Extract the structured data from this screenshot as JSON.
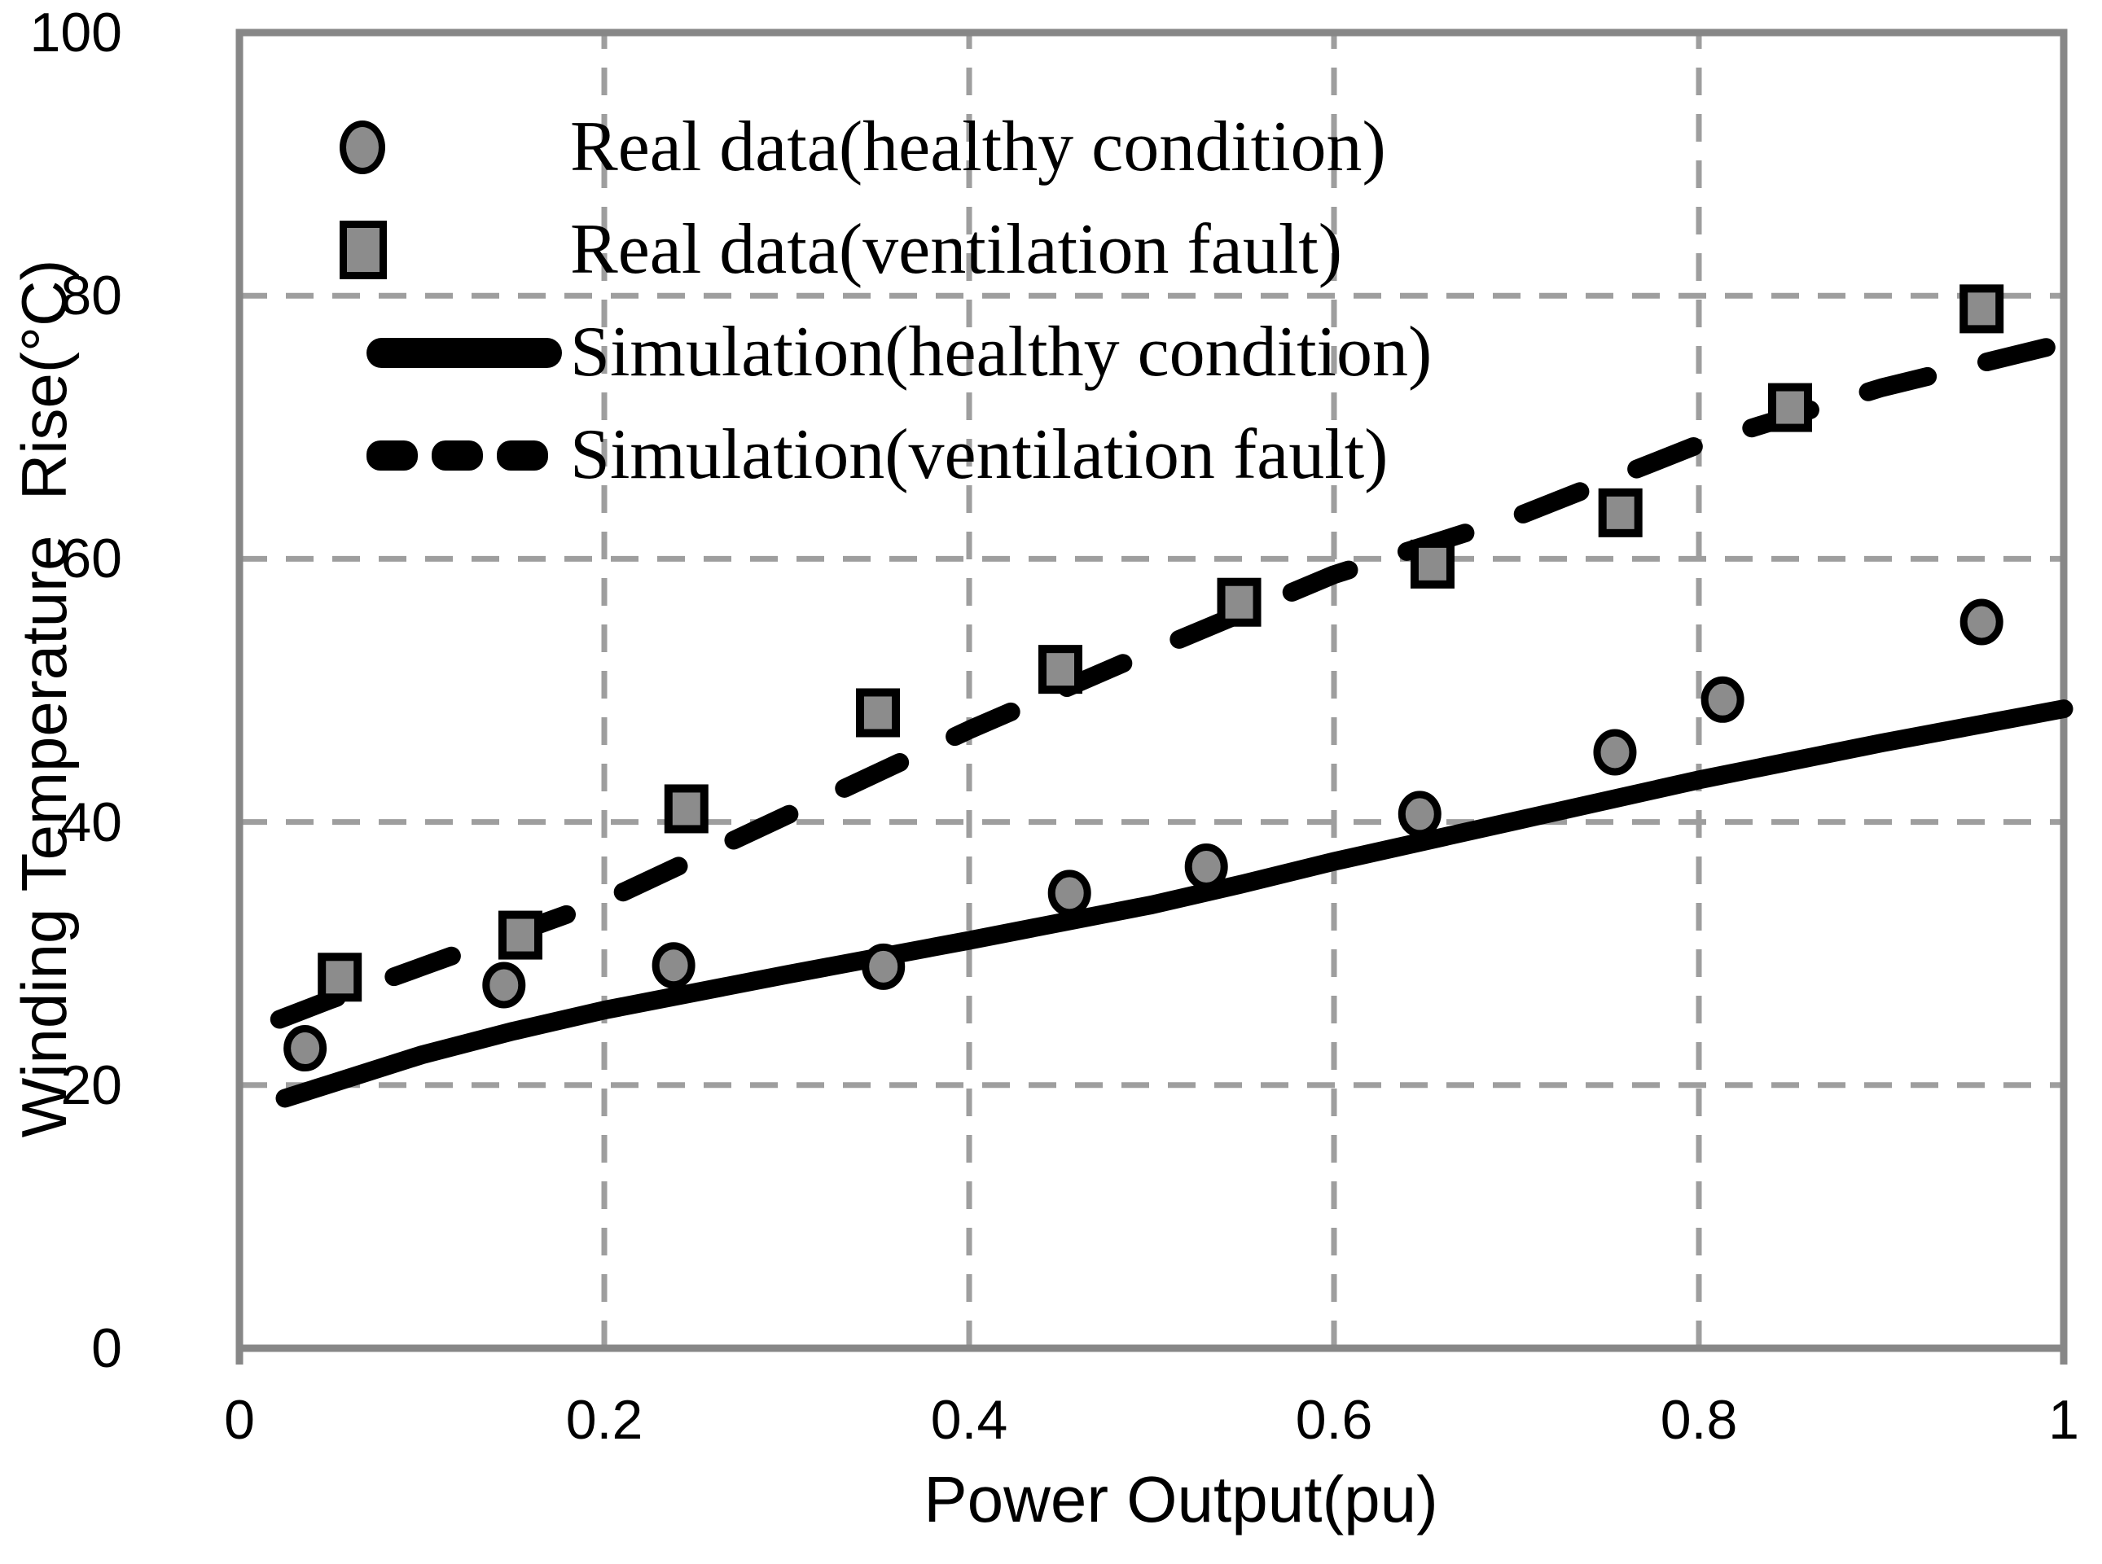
{
  "chart_data": {
    "type": "scatter",
    "title": "",
    "xlabel": "Power Output(pu)",
    "ylabel": "Winding Temperature  Rise(°C)",
    "xlim": [
      0,
      1
    ],
    "ylim": [
      0,
      100
    ],
    "xticks": [
      "0",
      "0.2",
      "0.4",
      "0.6",
      "0.8",
      "1"
    ],
    "xtick_values": [
      0,
      0.2,
      0.4,
      0.6,
      0.8,
      1
    ],
    "yticks": [
      "0",
      "20",
      "40",
      "60",
      "80",
      "100"
    ],
    "ytick_values": [
      0,
      20,
      40,
      60,
      80,
      100
    ],
    "grid": "dashed-gray-both-axes",
    "legend_position": "top-left-inside",
    "series": [
      {
        "name": "Real data(healthy condition)",
        "type": "scatter",
        "marker": "circle",
        "points": [
          [
            0.036,
            22.8
          ],
          [
            0.145,
            27.6
          ],
          [
            0.238,
            29.1
          ],
          [
            0.353,
            29.0
          ],
          [
            0.455,
            34.6
          ],
          [
            0.53,
            36.6
          ],
          [
            0.647,
            40.6
          ],
          [
            0.754,
            45.3
          ],
          [
            0.813,
            49.3
          ],
          [
            0.955,
            55.2
          ]
        ]
      },
      {
        "name": "Real data(ventilation fault)",
        "type": "scatter",
        "marker": "square",
        "points": [
          [
            0.055,
            28.2
          ],
          [
            0.154,
            31.4
          ],
          [
            0.245,
            41.0
          ],
          [
            0.35,
            48.3
          ],
          [
            0.45,
            51.6
          ],
          [
            0.548,
            56.7
          ],
          [
            0.654,
            59.6
          ],
          [
            0.757,
            63.5
          ],
          [
            0.85,
            71.5
          ],
          [
            0.955,
            79.0
          ]
        ]
      },
      {
        "name": "Simulation(healthy condition)",
        "type": "line",
        "style": "solid",
        "points": [
          [
            0.025,
            19.0
          ],
          [
            0.05,
            20.1
          ],
          [
            0.1,
            22.3
          ],
          [
            0.15,
            24.1
          ],
          [
            0.2,
            25.7
          ],
          [
            0.3,
            28.4
          ],
          [
            0.4,
            31.0
          ],
          [
            0.5,
            33.7
          ],
          [
            0.55,
            35.3
          ],
          [
            0.6,
            37.0
          ],
          [
            0.7,
            40.1
          ],
          [
            0.8,
            43.2
          ],
          [
            0.9,
            46.0
          ],
          [
            1.0,
            48.6
          ]
        ]
      },
      {
        "name": "Simulation(ventilation fault)",
        "type": "line",
        "style": "dashed",
        "points": [
          [
            0.022,
            25.0
          ],
          [
            0.05,
            26.5
          ],
          [
            0.1,
            29.0
          ],
          [
            0.2,
            34.0
          ],
          [
            0.3,
            40.5
          ],
          [
            0.4,
            47.0
          ],
          [
            0.5,
            53.0
          ],
          [
            0.6,
            58.8
          ],
          [
            0.7,
            63.2
          ],
          [
            0.8,
            68.7
          ],
          [
            0.9,
            73.0
          ],
          [
            1.0,
            76.4
          ]
        ]
      }
    ],
    "colors": {
      "marker_fill": "#8c8c8c",
      "marker_stroke": "#000000",
      "line": "#000000",
      "grid": "#9e9e9e",
      "frame": "#878787",
      "background": "#ffffff",
      "text": "#000000"
    }
  }
}
